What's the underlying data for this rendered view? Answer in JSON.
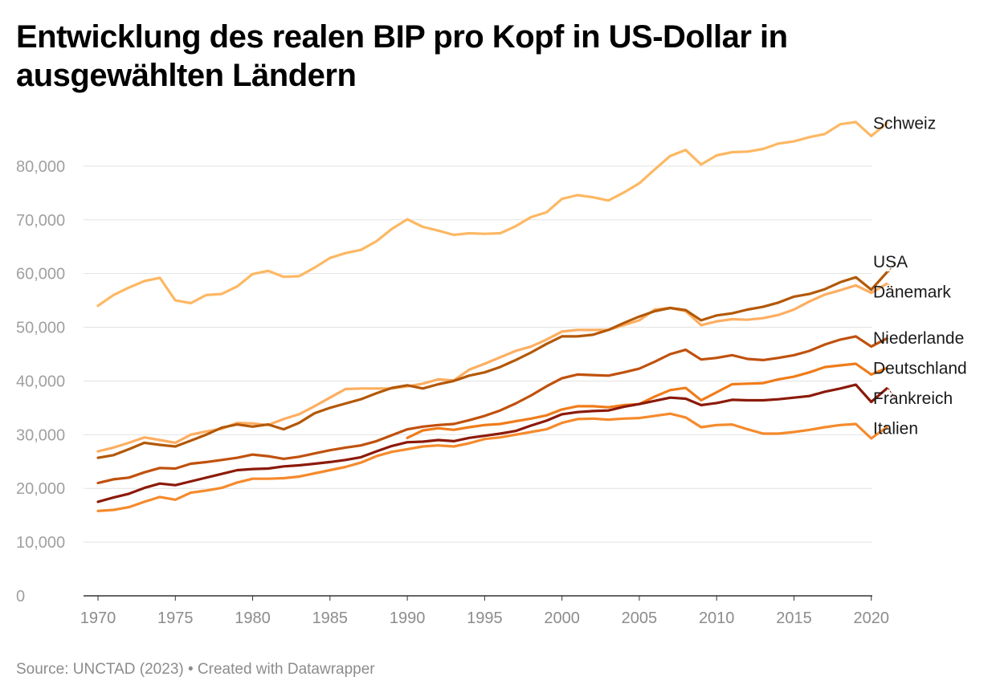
{
  "title": "Entwicklung des realen BIP pro Kopf in US-Dollar in ausgewählten Ländern",
  "source": "Source: UNCTAD (2023) • Created with Datawrapper",
  "chart_data": {
    "type": "line",
    "title": "Entwicklung des realen BIP pro Kopf in US-Dollar in ausgewählten Ländern",
    "xlabel": "",
    "ylabel": "",
    "xlim": [
      1970,
      2021
    ],
    "ylim": [
      0,
      90000
    ],
    "y_ticks": [
      0,
      10000,
      20000,
      30000,
      40000,
      50000,
      60000,
      70000,
      80000
    ],
    "y_tick_labels": [
      "0",
      "10,000",
      "20,000",
      "30,000",
      "40,000",
      "50,000",
      "60,000",
      "70,000",
      "80,000"
    ],
    "x_ticks": [
      1970,
      1975,
      1980,
      1985,
      1990,
      1995,
      2000,
      2005,
      2010,
      2015,
      2020
    ],
    "x_tick_labels": [
      "1970",
      "1975",
      "1980",
      "1985",
      "1990",
      "1995",
      "2000",
      "2005",
      "2010",
      "2015",
      "2020"
    ],
    "grid": "horizontal",
    "legend": "direct labels at line ends (right)",
    "series": [
      {
        "name": "Schweiz",
        "color": "#fdb863",
        "x": [
          1970,
          1971,
          1972,
          1973,
          1974,
          1975,
          1976,
          1977,
          1978,
          1979,
          1980,
          1981,
          1982,
          1983,
          1984,
          1985,
          1986,
          1987,
          1988,
          1989,
          1990,
          1991,
          1992,
          1993,
          1994,
          1995,
          1996,
          1997,
          1998,
          1999,
          2000,
          2001,
          2002,
          2003,
          2004,
          2005,
          2006,
          2007,
          2008,
          2009,
          2010,
          2011,
          2012,
          2013,
          2014,
          2015,
          2016,
          2017,
          2018,
          2019,
          2020,
          2021
        ],
        "values": [
          54000,
          56000,
          57400,
          58600,
          59200,
          55000,
          54500,
          56000,
          56200,
          57600,
          59900,
          60500,
          59400,
          59500,
          61100,
          62900,
          63800,
          64400,
          66000,
          68300,
          70100,
          68700,
          68000,
          67200,
          67500,
          67400,
          67500,
          68800,
          70500,
          71400,
          73900,
          74600,
          74200,
          73600,
          75100,
          76800,
          79400,
          81900,
          83000,
          80300,
          82000,
          82600,
          82700,
          83200,
          84200,
          84600,
          85400,
          86000,
          87800,
          88200,
          85600,
          88000
        ]
      },
      {
        "name": "USA",
        "color": "#b35806",
        "x": [
          1970,
          1971,
          1972,
          1973,
          1974,
          1975,
          1976,
          1977,
          1978,
          1979,
          1980,
          1981,
          1982,
          1983,
          1984,
          1985,
          1986,
          1987,
          1988,
          1989,
          1990,
          1991,
          1992,
          1993,
          1994,
          1995,
          1996,
          1997,
          1998,
          1999,
          2000,
          2001,
          2002,
          2003,
          2004,
          2005,
          2006,
          2007,
          2008,
          2009,
          2010,
          2011,
          2012,
          2013,
          2014,
          2015,
          2016,
          2017,
          2018,
          2019,
          2020,
          2021
        ],
        "values": [
          25700,
          26200,
          27300,
          28500,
          28100,
          27800,
          28900,
          30000,
          31300,
          31900,
          31500,
          31900,
          31000,
          32200,
          34000,
          35000,
          35800,
          36600,
          37700,
          38700,
          39200,
          38600,
          39400,
          40000,
          41000,
          41600,
          42600,
          43900,
          45300,
          46900,
          48300,
          48300,
          48600,
          49500,
          50800,
          52000,
          53000,
          53600,
          53200,
          51300,
          52200,
          52600,
          53300,
          53800,
          54600,
          55700,
          56200,
          57100,
          58400,
          59300,
          57000,
          60200
        ]
      },
      {
        "name": "Dänemark",
        "color": "#fdae61",
        "x": [
          1970,
          1971,
          1972,
          1973,
          1974,
          1975,
          1976,
          1977,
          1978,
          1979,
          1980,
          1981,
          1982,
          1983,
          1984,
          1985,
          1986,
          1987,
          1988,
          1989,
          1990,
          1991,
          1992,
          1993,
          1994,
          1995,
          1996,
          1997,
          1998,
          1999,
          2000,
          2001,
          2002,
          2003,
          2004,
          2005,
          2006,
          2007,
          2008,
          2009,
          2010,
          2011,
          2012,
          2013,
          2014,
          2015,
          2016,
          2017,
          2018,
          2019,
          2020,
          2021
        ],
        "values": [
          26900,
          27600,
          28500,
          29500,
          29000,
          28500,
          30000,
          30600,
          31100,
          32200,
          32100,
          31800,
          32900,
          33800,
          35300,
          36900,
          38500,
          38600,
          38600,
          38600,
          39000,
          39500,
          40300,
          40100,
          42100,
          43200,
          44400,
          45600,
          46400,
          47700,
          49200,
          49500,
          49500,
          49500,
          50400,
          51300,
          53300,
          53600,
          53000,
          50400,
          51100,
          51500,
          51400,
          51700,
          52300,
          53300,
          54800,
          56100,
          56900,
          57800,
          56400,
          58100
        ]
      },
      {
        "name": "Niederlande",
        "color": "#c0510c",
        "x": [
          1970,
          1971,
          1972,
          1973,
          1974,
          1975,
          1976,
          1977,
          1978,
          1979,
          1980,
          1981,
          1982,
          1983,
          1984,
          1985,
          1986,
          1987,
          1988,
          1989,
          1990,
          1991,
          1992,
          1993,
          1994,
          1995,
          1996,
          1997,
          1998,
          1999,
          2000,
          2001,
          2002,
          2003,
          2004,
          2005,
          2006,
          2007,
          2008,
          2009,
          2010,
          2011,
          2012,
          2013,
          2014,
          2015,
          2016,
          2017,
          2018,
          2019,
          2020,
          2021
        ],
        "values": [
          21000,
          21700,
          22000,
          23000,
          23800,
          23700,
          24600,
          24900,
          25300,
          25700,
          26300,
          26000,
          25500,
          25900,
          26500,
          27100,
          27600,
          28000,
          28800,
          29900,
          31000,
          31500,
          31800,
          32000,
          32700,
          33500,
          34500,
          35800,
          37300,
          39000,
          40500,
          41200,
          41100,
          41000,
          41600,
          42300,
          43600,
          45000,
          45800,
          44000,
          44300,
          44800,
          44100,
          43900,
          44300,
          44800,
          45600,
          46800,
          47700,
          48300,
          46400,
          47900
        ]
      },
      {
        "name": "Deutschland",
        "color": "#f07c1a",
        "x": [
          1990,
          1991,
          1992,
          1993,
          1994,
          1995,
          1996,
          1997,
          1998,
          1999,
          2000,
          2001,
          2002,
          2003,
          2004,
          2005,
          2006,
          2007,
          2008,
          2009,
          2010,
          2011,
          2012,
          2013,
          2014,
          2015,
          2016,
          2017,
          2018,
          2019,
          2020,
          2021
        ],
        "values": [
          29400,
          30800,
          31200,
          30900,
          31400,
          31800,
          32000,
          32500,
          33000,
          33600,
          34700,
          35300,
          35300,
          35100,
          35500,
          35700,
          37100,
          38300,
          38700,
          36400,
          37900,
          39400,
          39500,
          39600,
          40300,
          40800,
          41600,
          42600,
          42900,
          43200,
          41200,
          42400
        ]
      },
      {
        "name": "Frankreich",
        "color": "#8c1a0a",
        "x": [
          1970,
          1971,
          1972,
          1973,
          1974,
          1975,
          1976,
          1977,
          1978,
          1979,
          1980,
          1981,
          1982,
          1983,
          1984,
          1985,
          1986,
          1987,
          1988,
          1989,
          1990,
          1991,
          1992,
          1993,
          1994,
          1995,
          1996,
          1997,
          1998,
          1999,
          2000,
          2001,
          2002,
          2003,
          2004,
          2005,
          2006,
          2007,
          2008,
          2009,
          2010,
          2011,
          2012,
          2013,
          2014,
          2015,
          2016,
          2017,
          2018,
          2019,
          2020,
          2021
        ],
        "values": [
          17500,
          18300,
          19000,
          20100,
          20900,
          20600,
          21300,
          22000,
          22700,
          23400,
          23600,
          23700,
          24100,
          24300,
          24600,
          24900,
          25300,
          25800,
          26900,
          27900,
          28600,
          28700,
          29000,
          28800,
          29400,
          29800,
          30200,
          30700,
          31700,
          32600,
          33800,
          34200,
          34400,
          34500,
          35200,
          35700,
          36300,
          36900,
          36700,
          35500,
          35900,
          36500,
          36400,
          36400,
          36600,
          36900,
          37200,
          38000,
          38600,
          39300,
          36100,
          38600
        ]
      },
      {
        "name": "Italien",
        "color": "#f58a2c",
        "x": [
          1970,
          1971,
          1972,
          1973,
          1974,
          1975,
          1976,
          1977,
          1978,
          1979,
          1980,
          1981,
          1982,
          1983,
          1984,
          1985,
          1986,
          1987,
          1988,
          1989,
          1990,
          1991,
          1992,
          1993,
          1994,
          1995,
          1996,
          1997,
          1998,
          1999,
          2000,
          2001,
          2002,
          2003,
          2004,
          2005,
          2006,
          2007,
          2008,
          2009,
          2010,
          2011,
          2012,
          2013,
          2014,
          2015,
          2016,
          2017,
          2018,
          2019,
          2020,
          2021
        ],
        "values": [
          15800,
          16000,
          16500,
          17500,
          18400,
          17900,
          19200,
          19600,
          20100,
          21100,
          21800,
          21800,
          21900,
          22200,
          22800,
          23400,
          24000,
          24800,
          26000,
          26800,
          27300,
          27800,
          28000,
          27800,
          28400,
          29200,
          29500,
          30000,
          30500,
          31000,
          32200,
          32900,
          33000,
          32800,
          33000,
          33100,
          33500,
          33900,
          33200,
          31400,
          31800,
          31900,
          31000,
          30200,
          30200,
          30500,
          30900,
          31400,
          31800,
          32000,
          29300,
          31400
        ]
      }
    ],
    "labels": [
      {
        "series": "Schweiz",
        "text": "Schweiz",
        "anchor_value": 88000,
        "label_value": 88000
      },
      {
        "series": "USA",
        "text": "USA",
        "anchor_value": 60200,
        "label_value": 62200
      },
      {
        "series": "Dänemark",
        "text": "Dänemark",
        "anchor_value": 58100,
        "label_value": 56600
      },
      {
        "series": "Niederlande",
        "text": "Niederlande",
        "anchor_value": 47900,
        "label_value": 48000
      },
      {
        "series": "Deutschland",
        "text": "Deutschland",
        "anchor_value": 42400,
        "label_value": 42400
      },
      {
        "series": "Frankreich",
        "text": "Frankreich",
        "anchor_value": 38600,
        "label_value": 36800
      },
      {
        "series": "Italien",
        "text": "Italien",
        "anchor_value": 31400,
        "label_value": 31200
      }
    ]
  }
}
